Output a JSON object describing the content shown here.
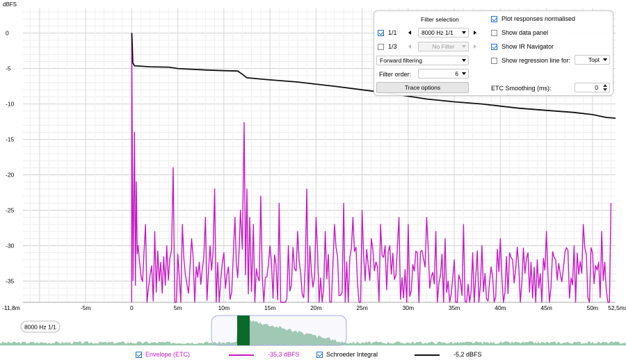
{
  "chart_data": {
    "type": "line",
    "ylabel": "dBFS",
    "xunit": "ms",
    "xlim": [
      -11.8,
      52.5
    ],
    "ylim": [
      -38,
      3.5
    ],
    "x_ticks": [
      {
        "v": -11.8,
        "label": "-11,8m"
      },
      {
        "v": -5,
        "label": "-5m"
      },
      {
        "v": 0,
        "label": "0"
      },
      {
        "v": 5,
        "label": "5m"
      },
      {
        "v": 10,
        "label": "10m"
      },
      {
        "v": 15,
        "label": "15m"
      },
      {
        "v": 20,
        "label": "20m"
      },
      {
        "v": 25,
        "label": "25m"
      },
      {
        "v": 30,
        "label": "30m"
      },
      {
        "v": 35,
        "label": "35m"
      },
      {
        "v": 40,
        "label": "40m"
      },
      {
        "v": 45,
        "label": "45m"
      },
      {
        "v": 50,
        "label": "50m"
      },
      {
        "v": 52.5,
        "label": "52,5ms"
      }
    ],
    "y_ticks": [
      {
        "v": 0,
        "label": "0"
      },
      {
        "v": -5,
        "label": "-5"
      },
      {
        "v": -10,
        "label": "-10"
      },
      {
        "v": -15,
        "label": "-15"
      },
      {
        "v": -20,
        "label": "-20"
      },
      {
        "v": -25,
        "label": "-25"
      },
      {
        "v": -30,
        "label": "-30"
      },
      {
        "v": -35,
        "label": "-35"
      }
    ],
    "grid": true,
    "series": [
      {
        "name": "Schroeder Integral",
        "color": "#111111",
        "points": [
          [
            0,
            0
          ],
          [
            0.05,
            -1.2
          ],
          [
            0.12,
            -4.2
          ],
          [
            0.3,
            -4.6
          ],
          [
            2,
            -4.75
          ],
          [
            4,
            -4.8
          ],
          [
            5,
            -5.0
          ],
          [
            8,
            -5.2
          ],
          [
            10,
            -5.3
          ],
          [
            11.5,
            -5.35
          ],
          [
            12,
            -5.8
          ],
          [
            12.5,
            -6.3
          ],
          [
            15,
            -6.6
          ],
          [
            18,
            -6.9
          ],
          [
            20,
            -7.2
          ],
          [
            22,
            -7.5
          ],
          [
            25,
            -8.0
          ],
          [
            28,
            -8.5
          ],
          [
            30,
            -8.9
          ],
          [
            32,
            -9.3
          ],
          [
            35,
            -9.7
          ],
          [
            38,
            -10.0
          ],
          [
            40,
            -10.3
          ],
          [
            42,
            -10.6
          ],
          [
            45,
            -10.9
          ],
          [
            48,
            -11.2
          ],
          [
            50,
            -11.5
          ],
          [
            51.5,
            -11.9
          ],
          [
            52.5,
            -12.0
          ]
        ]
      },
      {
        "name": "Envelope (ETC)",
        "color": "#c818c8",
        "peaks": [
          [
            0,
            0
          ],
          [
            0.3,
            -14
          ],
          [
            0.5,
            -21
          ],
          [
            0.7,
            -30
          ],
          [
            1.5,
            -27
          ],
          [
            2.5,
            -28
          ],
          [
            3.8,
            -30
          ],
          [
            4.5,
            -19
          ],
          [
            5.5,
            -27
          ],
          [
            6.5,
            -29
          ],
          [
            7,
            -33
          ],
          [
            8,
            -26
          ],
          [
            8.5,
            -30
          ],
          [
            9,
            -22
          ],
          [
            10,
            -31
          ],
          [
            10.5,
            -33
          ],
          [
            11.2,
            -26
          ],
          [
            11.8,
            -25
          ],
          [
            12.2,
            -12.6
          ],
          [
            12.5,
            -22
          ],
          [
            12.8,
            -26
          ],
          [
            13.2,
            -27
          ],
          [
            14,
            -23
          ],
          [
            15,
            -30
          ],
          [
            16,
            -24
          ],
          [
            17,
            -30
          ],
          [
            18,
            -28
          ],
          [
            19,
            -22
          ],
          [
            20,
            -26
          ],
          [
            21,
            -28
          ],
          [
            22,
            -27
          ],
          [
            23,
            -24
          ],
          [
            24,
            -26
          ],
          [
            25,
            -25
          ],
          [
            26,
            -29
          ],
          [
            27,
            -27
          ],
          [
            28,
            -30
          ],
          [
            29,
            -26
          ],
          [
            30,
            -27
          ],
          [
            31,
            -31
          ],
          [
            32,
            -26
          ],
          [
            33,
            -28
          ],
          [
            34,
            -29
          ],
          [
            35,
            -32
          ],
          [
            36,
            -27
          ],
          [
            37,
            -31
          ],
          [
            38,
            -30
          ],
          [
            39,
            -33
          ],
          [
            40,
            -29
          ],
          [
            41,
            -31
          ],
          [
            42,
            -33
          ],
          [
            43,
            -31
          ],
          [
            44,
            -32
          ],
          [
            45,
            -28
          ],
          [
            46,
            -32
          ],
          [
            47,
            -31
          ],
          [
            48,
            -30
          ],
          [
            49,
            -27
          ],
          [
            50,
            -31
          ],
          [
            51,
            -28
          ],
          [
            52,
            -24
          ]
        ]
      }
    ]
  },
  "axis": {
    "ylabel": "dBFS"
  },
  "controls": {
    "filter_selection_title": "Filter selection",
    "row1": {
      "label": "1/1",
      "checked": true,
      "value": "8000 Hz 1/1"
    },
    "row2": {
      "label": "1/3",
      "checked": false,
      "value": "No Filter"
    },
    "filtering": "Forward filtering",
    "filter_order_label": "Filter order:",
    "filter_order_value": "6",
    "trace_options": "Trace options",
    "plot_normalised": "Plot responses normalised",
    "show_data_panel": "Show data panel",
    "show_ir_navigator": "Show IR Navigator",
    "show_regression": "Show regression line for:",
    "regression_value": "Topt",
    "etc_smoothing_label": "ETC Smoothing (ms):",
    "etc_smoothing_value": "0"
  },
  "navigator": {
    "label": "8000 Hz 1/1"
  },
  "legend": {
    "envelope_label": "Envelope (ETC)",
    "envelope_value": "-35,3 dBFS",
    "envelope_color": "#c818c8",
    "schroeder_label": "Schroeder Integral",
    "schroeder_value": "-5,2 dBFS",
    "schroeder_color": "#111111"
  }
}
